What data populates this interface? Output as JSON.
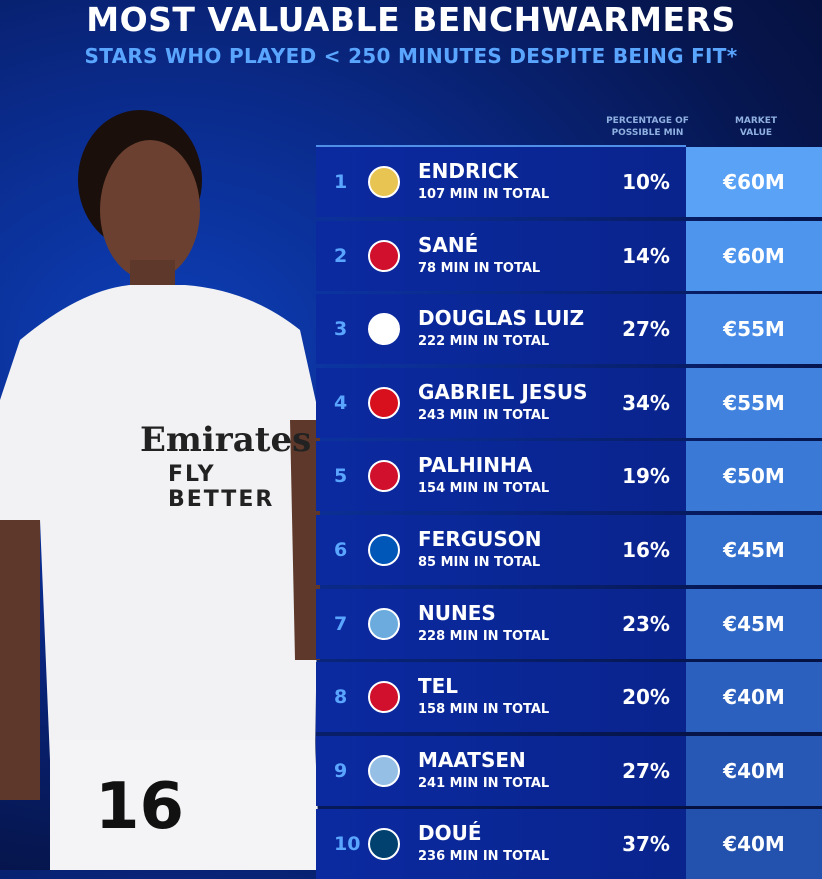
{
  "title": "MOST VALUABLE BENCHWARMERS",
  "subtitle": "STARS WHO PLAYED < 250 MINUTES DESPITE BEING FIT*",
  "columns": {
    "percentage": "PERCENTAGE OF POSSIBLE MIN",
    "market_value": "MARKET VALUE"
  },
  "photo": {
    "sponsor": "Emirates",
    "slogan": "FLY BETTER",
    "shirt_number": "16"
  },
  "rows": [
    {
      "rank": "1",
      "name": "ENDRICK",
      "minutes": "107 MIN IN TOTAL",
      "percentage": "10%",
      "value": "€60M",
      "club_icon": "real-madrid-crest",
      "crest_color": "#e8c453",
      "value_color": "#5aa2f6"
    },
    {
      "rank": "2",
      "name": "SANÉ",
      "minutes": "78 MIN IN TOTAL",
      "percentage": "14%",
      "value": "€60M",
      "club_icon": "bayern-crest",
      "crest_color": "#d0102c",
      "value_color": "#4e95ee"
    },
    {
      "rank": "3",
      "name": "DOUGLAS LUIZ",
      "minutes": "222 MIN IN TOTAL",
      "percentage": "27%",
      "value": "€55M",
      "club_icon": "juventus-crest",
      "crest_color": "#ffffff",
      "value_color": "#478be6"
    },
    {
      "rank": "4",
      "name": "GABRIEL JESUS",
      "minutes": "243 MIN IN TOTAL",
      "percentage": "34%",
      "value": "€55M",
      "club_icon": "arsenal-crest",
      "crest_color": "#d8101e",
      "value_color": "#4082de"
    },
    {
      "rank": "5",
      "name": "PALHINHA",
      "minutes": "154 MIN IN TOTAL",
      "percentage": "19%",
      "value": "€50M",
      "club_icon": "bayern-crest",
      "crest_color": "#d0102c",
      "value_color": "#3a79d6"
    },
    {
      "rank": "6",
      "name": "FERGUSON",
      "minutes": "85 MIN IN TOTAL",
      "percentage": "16%",
      "value": "€45M",
      "club_icon": "brighton-crest",
      "crest_color": "#0057b8",
      "value_color": "#3470ce"
    },
    {
      "rank": "7",
      "name": "NUNES",
      "minutes": "228 MIN IN TOTAL",
      "percentage": "23%",
      "value": "€45M",
      "club_icon": "man-city-crest",
      "crest_color": "#6cabdd",
      "value_color": "#2f68c6"
    },
    {
      "rank": "8",
      "name": "TEL",
      "minutes": "158 MIN IN TOTAL",
      "percentage": "20%",
      "value": "€40M",
      "club_icon": "bayern-crest",
      "crest_color": "#d0102c",
      "value_color": "#2b60be"
    },
    {
      "rank": "9",
      "name": "MAATSEN",
      "minutes": "241 MIN IN TOTAL",
      "percentage": "27%",
      "value": "€40M",
      "club_icon": "aston-villa-crest",
      "crest_color": "#95bfe5",
      "value_color": "#2758b6"
    },
    {
      "rank": "10",
      "name": "DOUÉ",
      "minutes": "236 MIN IN TOTAL",
      "percentage": "37%",
      "value": "€40M",
      "club_icon": "psg-crest",
      "crest_color": "#004170",
      "value_color": "#2352ae"
    }
  ]
}
